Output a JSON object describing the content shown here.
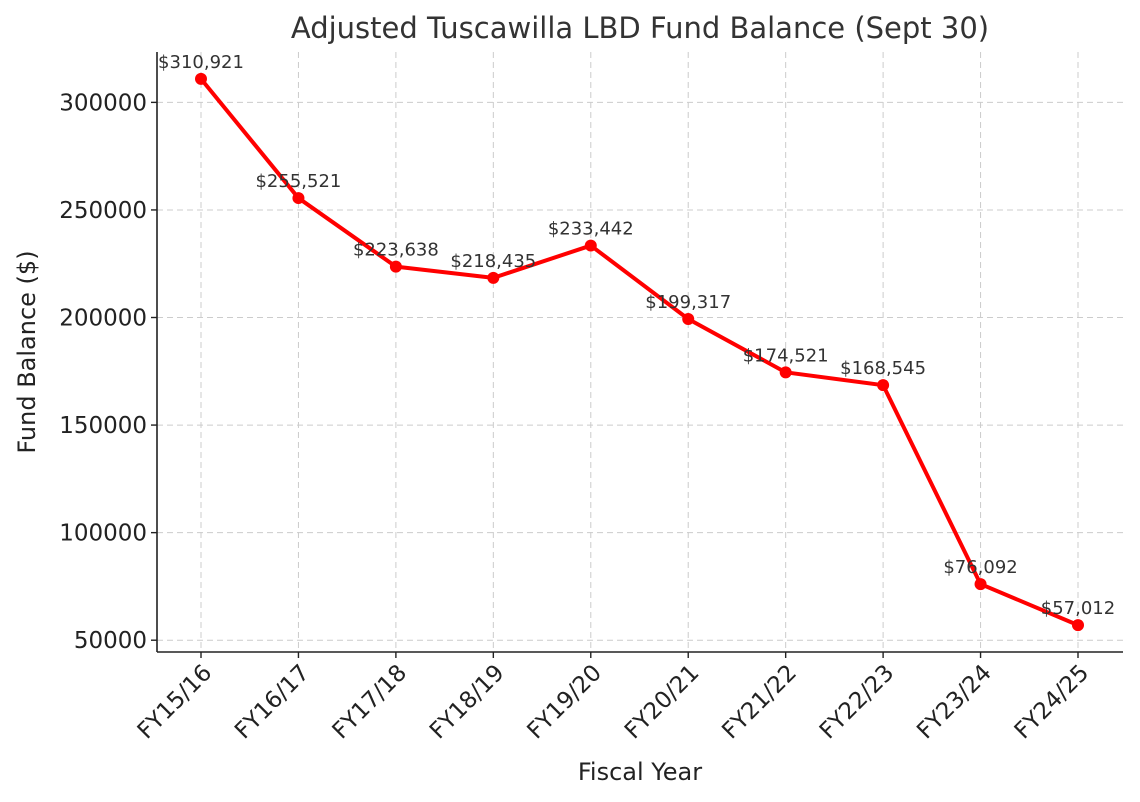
{
  "chart_data": {
    "type": "line",
    "title": "Adjusted Tuscawilla LBD Fund Balance (Sept 30)",
    "xlabel": "Fiscal Year",
    "ylabel": "Fund Balance ($)",
    "categories": [
      "FY15/16",
      "FY16/17",
      "FY17/18",
      "FY18/19",
      "FY19/20",
      "FY20/21",
      "FY21/22",
      "FY22/23",
      "FY23/24",
      "FY24/25"
    ],
    "values": [
      310921,
      255521,
      223638,
      218435,
      233442,
      199317,
      174521,
      168545,
      76092,
      57012
    ],
    "data_labels": [
      "$310,921",
      "$255,521",
      "$223,638",
      "$218,435",
      "$233,442",
      "$199,317",
      "$174,521",
      "$168,545",
      "$76,092",
      "$57,012"
    ],
    "yticks": [
      50000,
      100000,
      150000,
      200000,
      250000,
      300000
    ],
    "ytick_labels": [
      "50000",
      "100000",
      "150000",
      "200000",
      "250000",
      "300000"
    ],
    "ylim": [
      44517,
      323416
    ],
    "grid": true,
    "line_color": "#ff0000",
    "marker": "circle"
  }
}
